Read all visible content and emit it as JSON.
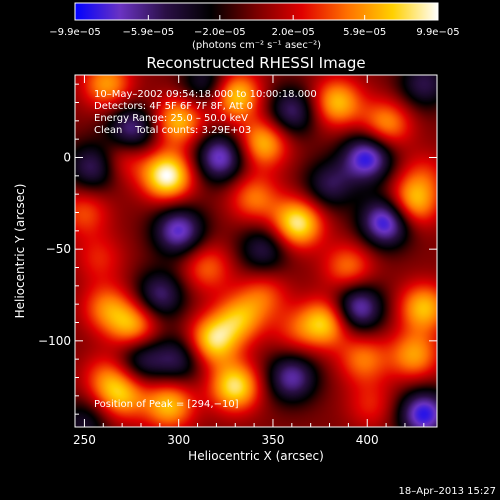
{
  "chart_data": {
    "type": "heatmap",
    "title": "Reconstructed RHESSI Image",
    "xlabel": "Heliocentric X (arcsec)",
    "ylabel": "Heliocentric Y (arcsec)",
    "xlim": [
      245,
      437
    ],
    "ylim": [
      -147,
      45
    ],
    "x_ticks": [
      250,
      300,
      350,
      400
    ],
    "x_tick_labels": [
      "250",
      "300",
      "350",
      "400"
    ],
    "y_ticks": [
      0,
      -50,
      -100
    ],
    "y_tick_labels": [
      "0",
      "−50",
      "−100"
    ],
    "colorbar": {
      "ticks": [
        -9.9e-05,
        -5.9e-05,
        -2e-05,
        2e-05,
        5.9e-05,
        9.9e-05
      ],
      "tick_labels": [
        "−9.9e−05",
        "−5.9e−05",
        "−2.0e−05",
        "2.0e−05",
        "5.9e−05",
        "9.9e−05"
      ],
      "range": [
        -9.9e-05,
        9.9e-05
      ],
      "unit_label": "(photons cm⁻² s⁻¹ asec⁻²)",
      "colors": [
        "#0000ff",
        "#6a33c2",
        "#2a0f45",
        "#000000",
        "#7a0000",
        "#e00000",
        "#ff7000",
        "#ffd000",
        "#ffffff"
      ]
    },
    "annotations": {
      "time_range": "10–May–2002 09:54:18.000 to 10:00:18.000",
      "detectors": "Detectors: 4F 5F 6F 7F 8F, Att 0",
      "energy_range": "Energy Range: 25.0 – 50.0 keV",
      "method_counts": "Clean    Total counts: 3.29E+03",
      "peak": "Position of Peak = [294,−10]"
    },
    "peak_position": [
      294,
      -10
    ],
    "sources": [
      {
        "x": 262,
        "y": 40,
        "value": 6e-05
      },
      {
        "x": 270,
        "y": 0,
        "value": 4e-05
      },
      {
        "x": 294,
        "y": -10,
        "value": 9.9e-05
      },
      {
        "x": 300,
        "y": 20,
        "value": 7e-05
      },
      {
        "x": 330,
        "y": 34,
        "value": 8e-05
      },
      {
        "x": 345,
        "y": 8,
        "value": 7e-05
      },
      {
        "x": 340,
        "y": -22,
        "value": 5e-05
      },
      {
        "x": 363,
        "y": -36,
        "value": 9e-05
      },
      {
        "x": 384,
        "y": 30,
        "value": 7e-05
      },
      {
        "x": 410,
        "y": 18,
        "value": 6e-05
      },
      {
        "x": 430,
        "y": -10,
        "value": 3e-05
      },
      {
        "x": 424,
        "y": -25,
        "value": 7e-05
      },
      {
        "x": 250,
        "y": -30,
        "value": 4e-05
      },
      {
        "x": 258,
        "y": -55,
        "value": 3e-05
      },
      {
        "x": 262,
        "y": -82,
        "value": 5e-05
      },
      {
        "x": 276,
        "y": -92,
        "value": 6.5e-05
      },
      {
        "x": 315,
        "y": -60,
        "value": 4.5e-05
      },
      {
        "x": 318,
        "y": -100,
        "value": 8e-05
      },
      {
        "x": 332,
        "y": -88,
        "value": 6e-05
      },
      {
        "x": 330,
        "y": -125,
        "value": 8.5e-05
      },
      {
        "x": 270,
        "y": -130,
        "value": 6e-05
      },
      {
        "x": 262,
        "y": -120,
        "value": 4e-05
      },
      {
        "x": 295,
        "y": -135,
        "value": 7e-05
      },
      {
        "x": 345,
        "y": -75,
        "value": 4e-05
      },
      {
        "x": 362,
        "y": -95,
        "value": 3e-05
      },
      {
        "x": 378,
        "y": -90,
        "value": 7.5e-05
      },
      {
        "x": 390,
        "y": -60,
        "value": 5e-05
      },
      {
        "x": 398,
        "y": -110,
        "value": 5e-05
      },
      {
        "x": 402,
        "y": -135,
        "value": 3e-05
      },
      {
        "x": 430,
        "y": -82,
        "value": 7e-05
      },
      {
        "x": 425,
        "y": -108,
        "value": 6e-05
      },
      {
        "x": 275,
        "y": 15,
        "value": -7e-05
      },
      {
        "x": 322,
        "y": 0,
        "value": -8e-05
      },
      {
        "x": 300,
        "y": -40,
        "value": -8e-05
      },
      {
        "x": 255,
        "y": -5,
        "value": -6e-05
      },
      {
        "x": 360,
        "y": 25,
        "value": -6e-05
      },
      {
        "x": 400,
        "y": 0,
        "value": -9e-05
      },
      {
        "x": 410,
        "y": -35,
        "value": -9.5e-05
      },
      {
        "x": 380,
        "y": -15,
        "value": -5e-05
      },
      {
        "x": 345,
        "y": -50,
        "value": -5e-05
      },
      {
        "x": 290,
        "y": -75,
        "value": -6e-05
      },
      {
        "x": 360,
        "y": -120,
        "value": -7e-05
      },
      {
        "x": 395,
        "y": -82,
        "value": -8e-05
      },
      {
        "x": 430,
        "y": -140,
        "value": -9e-05
      },
      {
        "x": 280,
        "y": -110,
        "value": -5e-05
      },
      {
        "x": 300,
        "y": -110,
        "value": -5e-05
      },
      {
        "x": 250,
        "y": -145,
        "value": -4e-05
      },
      {
        "x": 430,
        "y": 40,
        "value": -5e-05
      },
      {
        "x": 315,
        "y": 40,
        "value": -5e-05
      }
    ]
  },
  "footer": {
    "timestamp": "18–Apr–2013 15:27"
  }
}
